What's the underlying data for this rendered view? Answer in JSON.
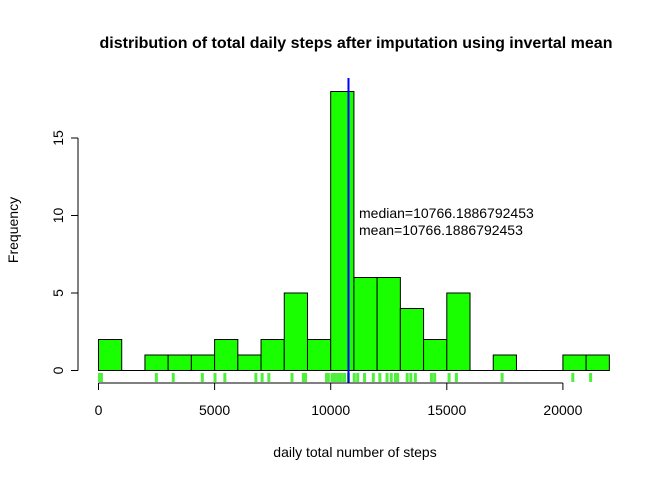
{
  "chart_data": {
    "type": "histogram",
    "title": "distribution of total daily steps after imputation using invertal mean",
    "xlabel": "daily total number of steps",
    "ylabel": "Frequency",
    "xlim": [
      0,
      22000
    ],
    "ylim": [
      0,
      18
    ],
    "grid": false,
    "legend": "none",
    "bin_width": 1000,
    "bins": [
      {
        "start": 0,
        "end": 1000,
        "count": 2
      },
      {
        "start": 1000,
        "end": 2000,
        "count": 0
      },
      {
        "start": 2000,
        "end": 3000,
        "count": 1
      },
      {
        "start": 3000,
        "end": 4000,
        "count": 1
      },
      {
        "start": 4000,
        "end": 5000,
        "count": 1
      },
      {
        "start": 5000,
        "end": 6000,
        "count": 2
      },
      {
        "start": 6000,
        "end": 7000,
        "count": 1
      },
      {
        "start": 7000,
        "end": 8000,
        "count": 2
      },
      {
        "start": 8000,
        "end": 9000,
        "count": 5
      },
      {
        "start": 9000,
        "end": 10000,
        "count": 2
      },
      {
        "start": 10000,
        "end": 11000,
        "count": 18
      },
      {
        "start": 11000,
        "end": 12000,
        "count": 6
      },
      {
        "start": 12000,
        "end": 13000,
        "count": 6
      },
      {
        "start": 13000,
        "end": 14000,
        "count": 4
      },
      {
        "start": 14000,
        "end": 15000,
        "count": 2
      },
      {
        "start": 15000,
        "end": 16000,
        "count": 5
      },
      {
        "start": 16000,
        "end": 17000,
        "count": 0
      },
      {
        "start": 17000,
        "end": 18000,
        "count": 1
      },
      {
        "start": 18000,
        "end": 19000,
        "count": 0
      },
      {
        "start": 19000,
        "end": 20000,
        "count": 0
      },
      {
        "start": 20000,
        "end": 21000,
        "count": 1
      },
      {
        "start": 21000,
        "end": 22000,
        "count": 1
      }
    ],
    "x_ticks": [
      0,
      5000,
      10000,
      15000,
      20000
    ],
    "x_tick_labels": [
      "0",
      "5000",
      "10000",
      "15000",
      "20000"
    ],
    "y_ticks": [
      0,
      5,
      10,
      15
    ],
    "y_tick_labels": [
      "0",
      "5",
      "10",
      "15"
    ],
    "rug": [
      41,
      126,
      2492,
      3219,
      4472,
      5018,
      5441,
      6778,
      7047,
      7336,
      8334,
      8821,
      8918,
      9819,
      9900,
      10056,
      10119,
      10183,
      10304,
      10395,
      10439,
      10571,
      10600,
      10765,
      10766,
      11015,
      11162,
      11458,
      11834,
      12116,
      12426,
      12608,
      12787,
      12883,
      13294,
      13452,
      13646,
      14339,
      14478,
      15098,
      15414,
      17382,
      20427,
      21194
    ],
    "mean": 10766.1886792453,
    "median": 10766.1886792453,
    "annotations": [
      "median=10766.1886792453",
      "mean=10766.1886792453"
    ],
    "colors": {
      "bar_fill": "#19ff00",
      "bar_stroke": "#000000",
      "rug": "#4ef03c",
      "median_line": "#ff0000",
      "mean_line": "#0000ff"
    }
  }
}
